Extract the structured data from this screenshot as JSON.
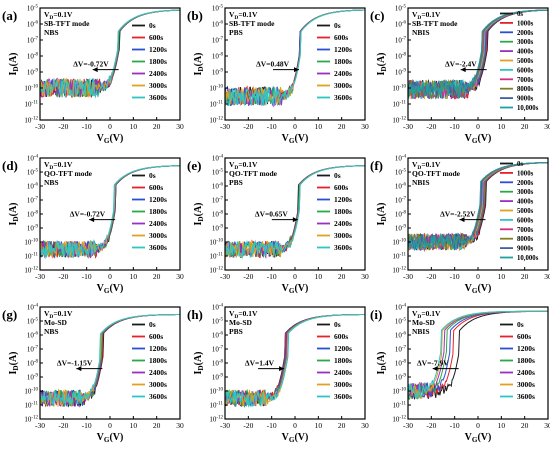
{
  "figure": {
    "panels": [
      {
        "letter": "(a)",
        "info": [
          "V_D=0.1V",
          "SB-TFT mode",
          "NBS"
        ],
        "shift_text": "ΔV=-0.72V",
        "legend": [
          "0s",
          "600s",
          "1200s",
          "1800s",
          "2400s",
          "3000s",
          "3600s"
        ],
        "ylim_exp": [
          -12,
          -5
        ],
        "xlim": [
          -30,
          30
        ],
        "xticks": [
          -30,
          -20,
          -10,
          0,
          10,
          20,
          30
        ]
      },
      {
        "letter": "(b)",
        "info": [
          "V_D=0.1V",
          "SB-TFT mode",
          "PBS"
        ],
        "shift_text": "ΔV=0.48V",
        "legend": [
          "0s",
          "600s",
          "1200s",
          "1800s",
          "2400s",
          "3000s",
          "3600s"
        ],
        "ylim_exp": [
          -12,
          -5
        ],
        "xlim": [
          -30,
          30
        ],
        "xticks": [
          -30,
          -20,
          -10,
          0,
          10,
          20,
          30
        ]
      },
      {
        "letter": "(c)",
        "info": [
          "V_D=0.1V",
          "SB-TFT mode",
          "NBIS"
        ],
        "shift_text": "ΔV=-2.4V",
        "legend": [
          "0s",
          "1000s",
          "2000s",
          "3000s",
          "4000s",
          "5000s",
          "6000s",
          "7000s",
          "8000s",
          "9000s",
          "10,000s"
        ],
        "ylim_exp": [
          -12,
          -5
        ],
        "xlim": [
          -30,
          30
        ],
        "xticks": [
          -30,
          -20,
          -10,
          0,
          10,
          20,
          30
        ]
      },
      {
        "letter": "(d)",
        "info": [
          "V_D=0.1V",
          "QO-TFT mode",
          "NBS"
        ],
        "shift_text": "ΔV=-0.72V",
        "legend": [
          "0s",
          "600s",
          "1200s",
          "1800s",
          "2400s",
          "3000s",
          "3600s"
        ],
        "ylim_exp": [
          -12,
          -4
        ],
        "xlim": [
          -30,
          30
        ],
        "xticks": [
          -30,
          -20,
          -10,
          0,
          10,
          20,
          30
        ]
      },
      {
        "letter": "(e)",
        "info": [
          "V_D=0.1V",
          "QO-TFT mode",
          "PBS"
        ],
        "shift_text": "ΔV=0.65V",
        "legend": [
          "0s",
          "600s",
          "1200s",
          "1800s",
          "2400s",
          "3000s",
          "3600s"
        ],
        "ylim_exp": [
          -12,
          -4
        ],
        "xlim": [
          -30,
          30
        ],
        "xticks": [
          -30,
          -20,
          -10,
          0,
          10,
          20,
          30
        ]
      },
      {
        "letter": "(f)",
        "info": [
          "V_D=0.1V",
          "QO-TFT mode",
          "NBIS"
        ],
        "shift_text": "ΔV=-2.52V",
        "legend": [
          "0s",
          "1000s",
          "2000s",
          "3000s",
          "4000s",
          "5000s",
          "6000s",
          "7000s",
          "8000s",
          "9000s",
          "10,000s"
        ],
        "ylim_exp": [
          -12,
          -4
        ],
        "xlim": [
          -30,
          30
        ],
        "xticks": [
          -30,
          -20,
          -10,
          0,
          10,
          20,
          30
        ]
      },
      {
        "letter": "(g)",
        "info": [
          "V_D=0.1V",
          "Mo-SD",
          "NBS"
        ],
        "shift_text": "ΔV=-1.15V",
        "legend": [
          "0s",
          "600s",
          "1200s",
          "1800s",
          "2400s",
          "3000s",
          "3600s"
        ],
        "ylim_exp": [
          -12,
          -4
        ],
        "xlim": [
          -30,
          30
        ],
        "xticks": [
          -30,
          -20,
          -10,
          0,
          10,
          20,
          30
        ]
      },
      {
        "letter": "(h)",
        "info": [
          "V_D=0.1V",
          "Mo-SD",
          "PBS"
        ],
        "shift_text": "ΔV=1.4V",
        "legend": [
          "0s",
          "600s",
          "1200s",
          "1800s",
          "2400s",
          "3000s",
          "3600s"
        ],
        "ylim_exp": [
          -12,
          -4
        ],
        "xlim": [
          -30,
          30
        ],
        "xticks": [
          -30,
          -20,
          -10,
          0,
          10,
          20,
          30
        ]
      },
      {
        "letter": "(i)",
        "info": [
          "V_D=0.1V",
          "Mo-SD",
          "NBIS"
        ],
        "shift_text": "ΔV=-7.9V",
        "legend": [
          "0s",
          "600s",
          "1200s",
          "1800s",
          "2400s",
          "3000s",
          "3600s"
        ],
        "ylim_exp": [
          -12,
          -4
        ],
        "xlim": [
          -30,
          30
        ],
        "xticks": [
          -30,
          -20,
          -10,
          0,
          10,
          20,
          30
        ]
      }
    ],
    "xlabel": "V_G(V)",
    "ylabel": "I_D(A)"
  },
  "colors": {
    "series7": [
      "#1a1a1a",
      "#e8202a",
      "#2a4fd6",
      "#2aa84a",
      "#9b2fc0",
      "#e0a020",
      "#2cc6c6"
    ],
    "series11": [
      "#1a1a1a",
      "#e8202a",
      "#2a4fd6",
      "#2aa84a",
      "#9b2fc0",
      "#e0a020",
      "#2cc6c6",
      "#d03080",
      "#808020",
      "#4060a0",
      "#20a0a0"
    ]
  },
  "chart_data": [
    {
      "type": "line",
      "title": "(a)",
      "xlabel": "V_G(V)",
      "ylabel": "I_D(A)",
      "xlim": [
        -30,
        30
      ],
      "ylim": [
        "1e-12",
        "1e-5"
      ],
      "y_scale": "log",
      "series": [
        {
          "name": "0s",
          "vth": 2.0
        },
        {
          "name": "600s",
          "vth": 1.9
        },
        {
          "name": "1200s",
          "vth": 1.8
        },
        {
          "name": "1800s",
          "vth": 1.7
        },
        {
          "name": "2400s",
          "vth": 1.5
        },
        {
          "name": "3000s",
          "vth": 1.4
        },
        {
          "name": "3600s",
          "vth": 1.3
        }
      ],
      "off_current": 1e-10,
      "on_current": 8e-06,
      "shift_V": -0.72
    },
    {
      "type": "line",
      "title": "(b)",
      "xlabel": "V_G(V)",
      "ylabel": "I_D(A)",
      "xlim": [
        -30,
        30
      ],
      "ylim": [
        "1e-12",
        "1e-5"
      ],
      "y_scale": "log",
      "series": [
        {
          "name": "0s",
          "vth": 0.0
        },
        {
          "name": "600s",
          "vth": 0.1
        },
        {
          "name": "1200s",
          "vth": 0.2
        },
        {
          "name": "1800s",
          "vth": 0.3
        },
        {
          "name": "2400s",
          "vth": 0.35
        },
        {
          "name": "3000s",
          "vth": 0.42
        },
        {
          "name": "3600s",
          "vth": 0.48
        }
      ],
      "off_current": 3e-11,
      "on_current": 8e-06,
      "shift_V": 0.48
    },
    {
      "type": "line",
      "title": "(c)",
      "xlabel": "V_G(V)",
      "ylabel": "I_D(A)",
      "xlim": [
        -30,
        30
      ],
      "ylim": [
        "1e-12",
        "1e-5"
      ],
      "y_scale": "log",
      "series": [
        {
          "name": "0s",
          "vth": 2.0
        },
        {
          "name": "1000s",
          "vth": 1.7
        },
        {
          "name": "2000s",
          "vth": 1.5
        },
        {
          "name": "3000s",
          "vth": 1.2
        },
        {
          "name": "4000s",
          "vth": 1.0
        },
        {
          "name": "5000s",
          "vth": 0.8
        },
        {
          "name": "6000s",
          "vth": 0.6
        },
        {
          "name": "7000s",
          "vth": 0.3
        },
        {
          "name": "8000s",
          "vth": 0.1
        },
        {
          "name": "9000s",
          "vth": -0.2
        },
        {
          "name": "10,000s",
          "vth": -0.4
        }
      ],
      "off_current": 8e-11,
      "on_current": 8e-06,
      "shift_V": -2.4
    },
    {
      "type": "line",
      "title": "(d)",
      "xlabel": "V_G(V)",
      "ylabel": "I_D(A)",
      "xlim": [
        -30,
        30
      ],
      "ylim": [
        "1e-12",
        "1e-4"
      ],
      "y_scale": "log",
      "series": [
        {
          "name": "0s",
          "vth": 0.5
        },
        {
          "name": "600s",
          "vth": 0.4
        },
        {
          "name": "1200s",
          "vth": 0.3
        },
        {
          "name": "1800s",
          "vth": 0.2
        },
        {
          "name": "2400s",
          "vth": 0.0
        },
        {
          "name": "3000s",
          "vth": -0.1
        },
        {
          "name": "3600s",
          "vth": -0.22
        }
      ],
      "off_current": 3e-11,
      "on_current": 3e-05,
      "shift_V": -0.72
    },
    {
      "type": "line",
      "title": "(e)",
      "xlabel": "V_G(V)",
      "ylabel": "I_D(A)",
      "xlim": [
        -30,
        30
      ],
      "ylim": [
        "1e-12",
        "1e-4"
      ],
      "y_scale": "log",
      "series": [
        {
          "name": "0s",
          "vth": -0.5
        },
        {
          "name": "600s",
          "vth": -0.4
        },
        {
          "name": "1200s",
          "vth": -0.3
        },
        {
          "name": "1800s",
          "vth": -0.2
        },
        {
          "name": "2400s",
          "vth": -0.05
        },
        {
          "name": "3000s",
          "vth": 0.05
        },
        {
          "name": "3600s",
          "vth": 0.15
        }
      ],
      "off_current": 3e-11,
      "on_current": 3e-05,
      "shift_V": 0.65
    },
    {
      "type": "line",
      "title": "(f)",
      "xlabel": "V_G(V)",
      "ylabel": "I_D(A)",
      "xlim": [
        -30,
        30
      ],
      "ylim": [
        "1e-12",
        "1e-4"
      ],
      "y_scale": "log",
      "series": [
        {
          "name": "0s",
          "vth": 1.5
        },
        {
          "name": "1000s",
          "vth": 1.2
        },
        {
          "name": "2000s",
          "vth": 0.9
        },
        {
          "name": "3000s",
          "vth": 0.7
        },
        {
          "name": "4000s",
          "vth": 0.4
        },
        {
          "name": "5000s",
          "vth": 0.2
        },
        {
          "name": "6000s",
          "vth": -0.1
        },
        {
          "name": "7000s",
          "vth": -0.3
        },
        {
          "name": "8000s",
          "vth": -0.5
        },
        {
          "name": "9000s",
          "vth": -0.8
        },
        {
          "name": "10,000s",
          "vth": -1.0
        }
      ],
      "off_current": 1e-10,
      "on_current": 5e-05,
      "shift_V": -2.52
    },
    {
      "type": "line",
      "title": "(g)",
      "xlabel": "V_G(V)",
      "ylabel": "I_D(A)",
      "xlim": [
        -30,
        30
      ],
      "ylim": [
        "1e-12",
        "1e-4"
      ],
      "y_scale": "log",
      "series": [
        {
          "name": "0s",
          "vth": -5.0
        },
        {
          "name": "600s",
          "vth": -5.2
        },
        {
          "name": "1200s",
          "vth": -5.4
        },
        {
          "name": "1800s",
          "vth": -5.6
        },
        {
          "name": "2400s",
          "vth": -5.8
        },
        {
          "name": "3000s",
          "vth": -6.0
        },
        {
          "name": "3600s",
          "vth": -6.15
        }
      ],
      "off_current": 3e-11,
      "on_current": 3e-05,
      "shift_V": -1.15
    },
    {
      "type": "line",
      "title": "(h)",
      "xlabel": "V_G(V)",
      "ylabel": "I_D(A)",
      "xlim": [
        -30,
        30
      ],
      "ylim": [
        "1e-12",
        "1e-4"
      ],
      "y_scale": "log",
      "series": [
        {
          "name": "0s",
          "vth": -6.4
        },
        {
          "name": "600s",
          "vth": -6.2
        },
        {
          "name": "1200s",
          "vth": -6.0
        },
        {
          "name": "1800s",
          "vth": -5.7
        },
        {
          "name": "2400s",
          "vth": -5.5
        },
        {
          "name": "3000s",
          "vth": -5.3
        },
        {
          "name": "3600s",
          "vth": -5.0
        }
      ],
      "off_current": 3e-11,
      "on_current": 3e-05,
      "shift_V": 1.4
    },
    {
      "type": "line",
      "title": "(i)",
      "xlabel": "V_G(V)",
      "ylabel": "I_D(A)",
      "xlim": [
        -30,
        30
      ],
      "ylim": [
        "1e-12",
        "1e-4"
      ],
      "y_scale": "log",
      "series": [
        {
          "name": "0s",
          "vth": -10.0
        },
        {
          "name": "600s",
          "vth": -12.5
        },
        {
          "name": "1200s",
          "vth": -14.0
        },
        {
          "name": "1800s",
          "vth": -15.5
        },
        {
          "name": "2400s",
          "vth": -16.5
        },
        {
          "name": "3000s",
          "vth": -17.3
        },
        {
          "name": "3600s",
          "vth": -17.9
        }
      ],
      "off_current": 1e-10,
      "on_current": 5e-05,
      "shift_V": -7.9
    }
  ]
}
